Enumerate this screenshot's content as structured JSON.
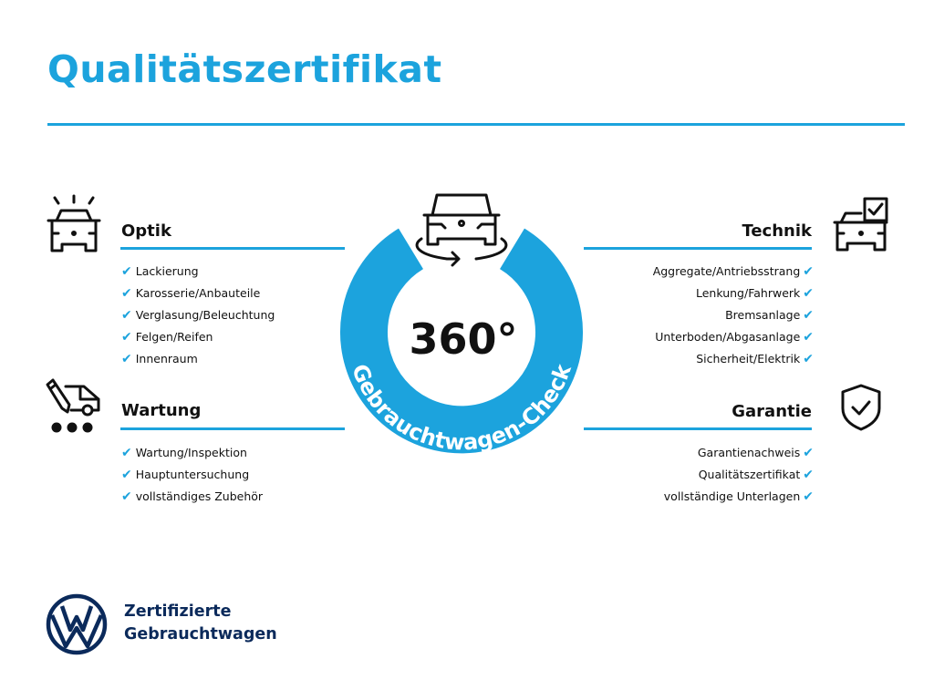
{
  "title": "Qualitätszertifikat",
  "colors": {
    "accent": "#1ca3dd",
    "brand_navy": "#0b2a5b"
  },
  "center": {
    "label": "360°",
    "ring_text": "Gebrauchtwagen-Check",
    "icon": "car-rotate-icon"
  },
  "sections": {
    "optik": {
      "heading": "Optik",
      "icon": "car-lights-icon",
      "items": [
        "Lackierung",
        "Karosserie/Anbauteile",
        "Verglasung/Beleuchtung",
        "Felgen/Reifen",
        "Innenraum"
      ]
    },
    "wartung": {
      "heading": "Wartung",
      "icon": "van-pencil-icon",
      "items": [
        "Wartung/Inspektion",
        "Hauptuntersuchung",
        "vollständiges Zubehör"
      ]
    },
    "technik": {
      "heading": "Technik",
      "icon": "car-checkbox-icon",
      "items": [
        "Aggregate/Antriebsstrang",
        "Lenkung/Fahrwerk",
        "Bremsanlage",
        "Unterboden/Abgasanlage",
        "Sicherheit/Elektrik"
      ]
    },
    "garantie": {
      "heading": "Garantie",
      "icon": "shield-check-icon",
      "items": [
        "Garantienachweis",
        "Qualitätszertifikat",
        "vollständige Unterlagen"
      ]
    }
  },
  "check_glyph": "✔",
  "brand": {
    "line1": "Zertifizierte",
    "line2": "Gebrauchtwagen",
    "logo": "vw-logo"
  }
}
